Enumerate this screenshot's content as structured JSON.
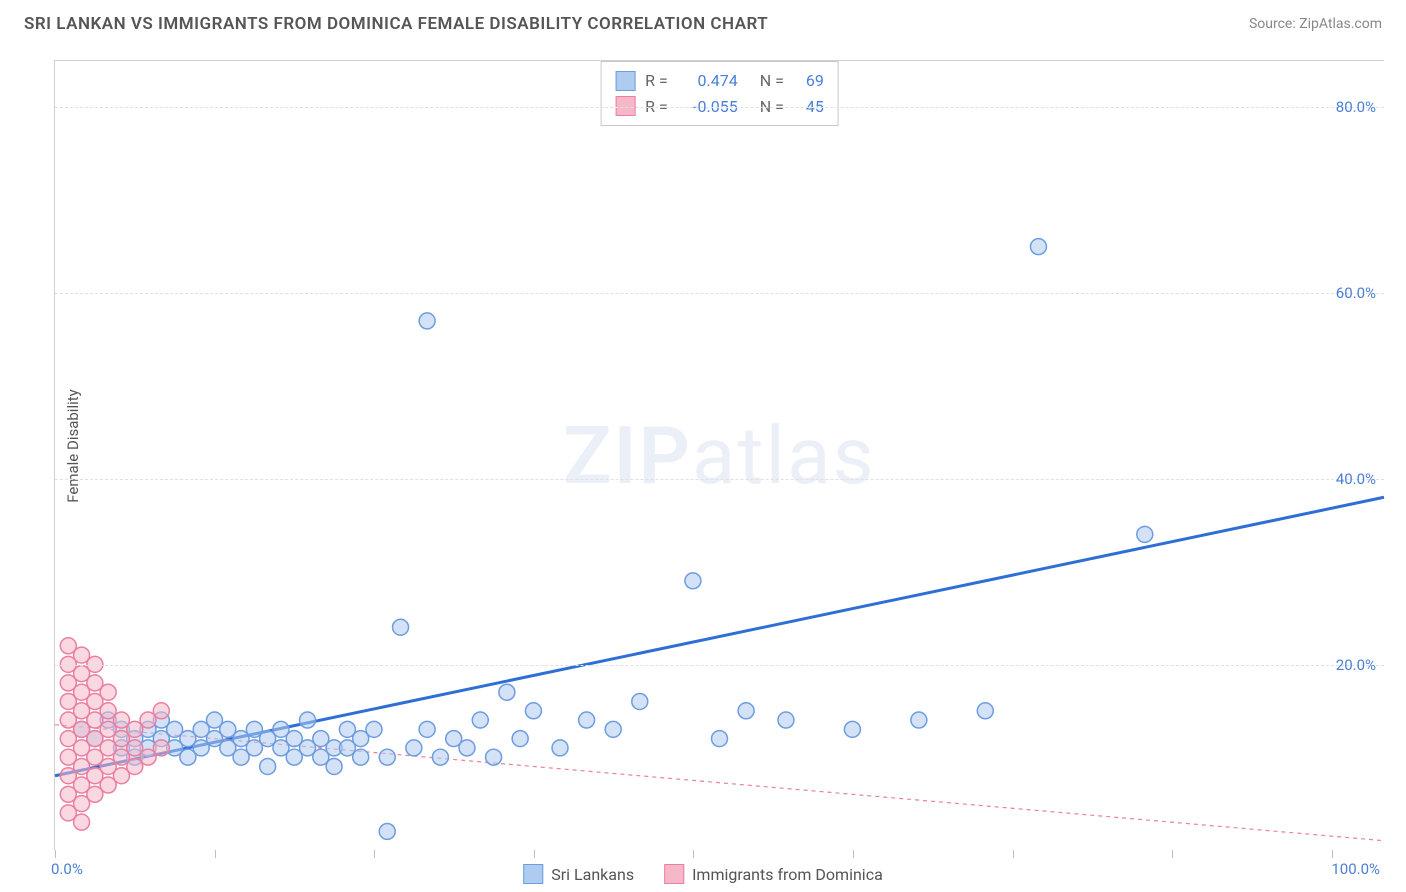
{
  "title": "SRI LANKAN VS IMMIGRANTS FROM DOMINICA FEMALE DISABILITY CORRELATION CHART",
  "source": "Source: ZipAtlas.com",
  "ylabel": "Female Disability",
  "watermark_a": "ZIP",
  "watermark_b": "atlas",
  "chart": {
    "type": "scatter",
    "xlim": [
      0,
      100
    ],
    "ylim": [
      0,
      85
    ],
    "x_ticks": [
      0,
      12,
      24,
      36,
      48,
      60,
      72,
      84,
      96
    ],
    "x_labels_visible": [
      {
        "v": 0,
        "t": "0.0%"
      },
      {
        "v": 100,
        "t": "100.0%"
      }
    ],
    "y_gridlines": [
      20,
      40,
      60,
      80
    ],
    "y_labels": [
      {
        "v": 20,
        "t": "20.0%"
      },
      {
        "v": 40,
        "t": "40.0%"
      },
      {
        "v": 60,
        "t": "60.0%"
      },
      {
        "v": 80,
        "t": "80.0%"
      }
    ],
    "background_color": "#ffffff",
    "grid_color": "#e0e0e0",
    "axis_color": "#d0d0d0",
    "marker_radius": 8,
    "marker_stroke_width": 1.5,
    "series": [
      {
        "name": "Sri Lankans",
        "fill": "#aecbf0",
        "stroke": "#6d9de0",
        "fill_opacity": 0.55,
        "points": [
          [
            2,
            13
          ],
          [
            3,
            12
          ],
          [
            4,
            14
          ],
          [
            5,
            11
          ],
          [
            5,
            13
          ],
          [
            6,
            12
          ],
          [
            6,
            10
          ],
          [
            7,
            13
          ],
          [
            7,
            11
          ],
          [
            8,
            12
          ],
          [
            8,
            14
          ],
          [
            9,
            11
          ],
          [
            9,
            13
          ],
          [
            10,
            12
          ],
          [
            10,
            10
          ],
          [
            11,
            13
          ],
          [
            11,
            11
          ],
          [
            12,
            12
          ],
          [
            12,
            14
          ],
          [
            13,
            11
          ],
          [
            13,
            13
          ],
          [
            14,
            12
          ],
          [
            14,
            10
          ],
          [
            15,
            11
          ],
          [
            15,
            13
          ],
          [
            16,
            12
          ],
          [
            16,
            9
          ],
          [
            17,
            11
          ],
          [
            17,
            13
          ],
          [
            18,
            10
          ],
          [
            18,
            12
          ],
          [
            19,
            11
          ],
          [
            19,
            14
          ],
          [
            20,
            10
          ],
          [
            20,
            12
          ],
          [
            21,
            11
          ],
          [
            21,
            9
          ],
          [
            22,
            13
          ],
          [
            22,
            11
          ],
          [
            23,
            10
          ],
          [
            23,
            12
          ],
          [
            24,
            13
          ],
          [
            25,
            10
          ],
          [
            25,
            2
          ],
          [
            26,
            24
          ],
          [
            27,
            11
          ],
          [
            28,
            13
          ],
          [
            29,
            10
          ],
          [
            30,
            12
          ],
          [
            31,
            11
          ],
          [
            32,
            14
          ],
          [
            33,
            10
          ],
          [
            34,
            17
          ],
          [
            35,
            12
          ],
          [
            36,
            15
          ],
          [
            38,
            11
          ],
          [
            40,
            14
          ],
          [
            42,
            13
          ],
          [
            44,
            16
          ],
          [
            48,
            29
          ],
          [
            50,
            12
          ],
          [
            52,
            15
          ],
          [
            55,
            14
          ],
          [
            60,
            13
          ],
          [
            65,
            14
          ],
          [
            70,
            15
          ],
          [
            28,
            57
          ],
          [
            74,
            65
          ],
          [
            82,
            34
          ]
        ],
        "trend": {
          "x1": 0,
          "y1": 8,
          "x2": 100,
          "y2": 38,
          "stroke": "#2e6fd6",
          "width": 3,
          "dash": "none"
        }
      },
      {
        "name": "Immigrants from Dominica",
        "fill": "#f6b8c8",
        "stroke": "#ea7fa0",
        "fill_opacity": 0.55,
        "points": [
          [
            1,
            4
          ],
          [
            1,
            6
          ],
          [
            1,
            8
          ],
          [
            1,
            10
          ],
          [
            1,
            12
          ],
          [
            1,
            14
          ],
          [
            1,
            16
          ],
          [
            1,
            18
          ],
          [
            1,
            20
          ],
          [
            1,
            22
          ],
          [
            2,
            5
          ],
          [
            2,
            7
          ],
          [
            2,
            9
          ],
          [
            2,
            11
          ],
          [
            2,
            13
          ],
          [
            2,
            15
          ],
          [
            2,
            17
          ],
          [
            2,
            19
          ],
          [
            2,
            21
          ],
          [
            3,
            6
          ],
          [
            3,
            8
          ],
          [
            3,
            10
          ],
          [
            3,
            12
          ],
          [
            3,
            14
          ],
          [
            3,
            16
          ],
          [
            3,
            18
          ],
          [
            3,
            20
          ],
          [
            4,
            7
          ],
          [
            4,
            9
          ],
          [
            4,
            11
          ],
          [
            4,
            13
          ],
          [
            4,
            15
          ],
          [
            4,
            17
          ],
          [
            5,
            8
          ],
          [
            5,
            10
          ],
          [
            5,
            12
          ],
          [
            5,
            14
          ],
          [
            6,
            9
          ],
          [
            6,
            11
          ],
          [
            6,
            13
          ],
          [
            7,
            10
          ],
          [
            7,
            14
          ],
          [
            8,
            11
          ],
          [
            8,
            15
          ],
          [
            2,
            3
          ]
        ],
        "trend": {
          "x1": 0,
          "y1": 13.5,
          "x2": 100,
          "y2": 1,
          "stroke": "#ea7fa0",
          "width": 1.2,
          "dash": "4,4"
        }
      }
    ]
  },
  "stats": [
    {
      "swatch_fill": "#aecbf0",
      "swatch_stroke": "#6d9de0",
      "r_label": "R =",
      "r": "0.474",
      "n_label": "N =",
      "n": "69"
    },
    {
      "swatch_fill": "#f6b8c8",
      "swatch_stroke": "#ea7fa0",
      "r_label": "R =",
      "r": "-0.055",
      "n_label": "N =",
      "n": "45"
    }
  ],
  "legend": [
    {
      "swatch_fill": "#aecbf0",
      "swatch_stroke": "#6d9de0",
      "label": "Sri Lankans"
    },
    {
      "swatch_fill": "#f6b8c8",
      "swatch_stroke": "#ea7fa0",
      "label": "Immigrants from Dominica"
    }
  ]
}
